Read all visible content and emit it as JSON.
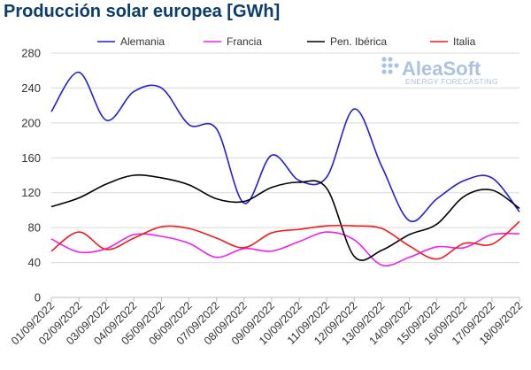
{
  "chart_data": {
    "type": "line",
    "title": "Producción solar europea [GWh]",
    "xlabel": "",
    "ylabel": "",
    "ylim": [
      0,
      280
    ],
    "yticks": [
      0,
      40,
      80,
      120,
      160,
      200,
      240,
      280
    ],
    "grid": true,
    "legend_position": "top",
    "categories": [
      "01/09/2022",
      "02/09/2022",
      "03/09/2022",
      "04/09/2022",
      "05/09/2022",
      "06/09/2022",
      "07/09/2022",
      "08/09/2022",
      "09/09/2022",
      "10/09/2022",
      "11/09/2022",
      "12/09/2022",
      "13/09/2022",
      "14/09/2022",
      "15/09/2022",
      "16/09/2022",
      "17/09/2022",
      "18/09/2022"
    ],
    "series": [
      {
        "name": "Alemania",
        "color": "#1f1fd6",
        "values": [
          213,
          258,
          203,
          236,
          240,
          198,
          193,
          108,
          163,
          134,
          138,
          216,
          150,
          88,
          113,
          134,
          137,
          98
        ]
      },
      {
        "name": "Francia",
        "color": "#f01ef0",
        "values": [
          67,
          52,
          56,
          72,
          70,
          62,
          46,
          56,
          53,
          64,
          75,
          66,
          37,
          46,
          58,
          57,
          72,
          73
        ]
      },
      {
        "name": "Pen. Ibérica",
        "color": "#000000",
        "values": [
          104,
          114,
          130,
          140,
          137,
          129,
          113,
          110,
          126,
          132,
          125,
          47,
          54,
          72,
          84,
          116,
          123,
          102
        ]
      },
      {
        "name": "Italia",
        "color": "#ee1c1c",
        "values": [
          53,
          75,
          55,
          68,
          81,
          79,
          68,
          57,
          74,
          78,
          82,
          82,
          79,
          59,
          44,
          62,
          61,
          87
        ]
      }
    ]
  },
  "logo": {
    "name": "AleaSoft",
    "tagline": "ENERGY FORECASTING"
  }
}
